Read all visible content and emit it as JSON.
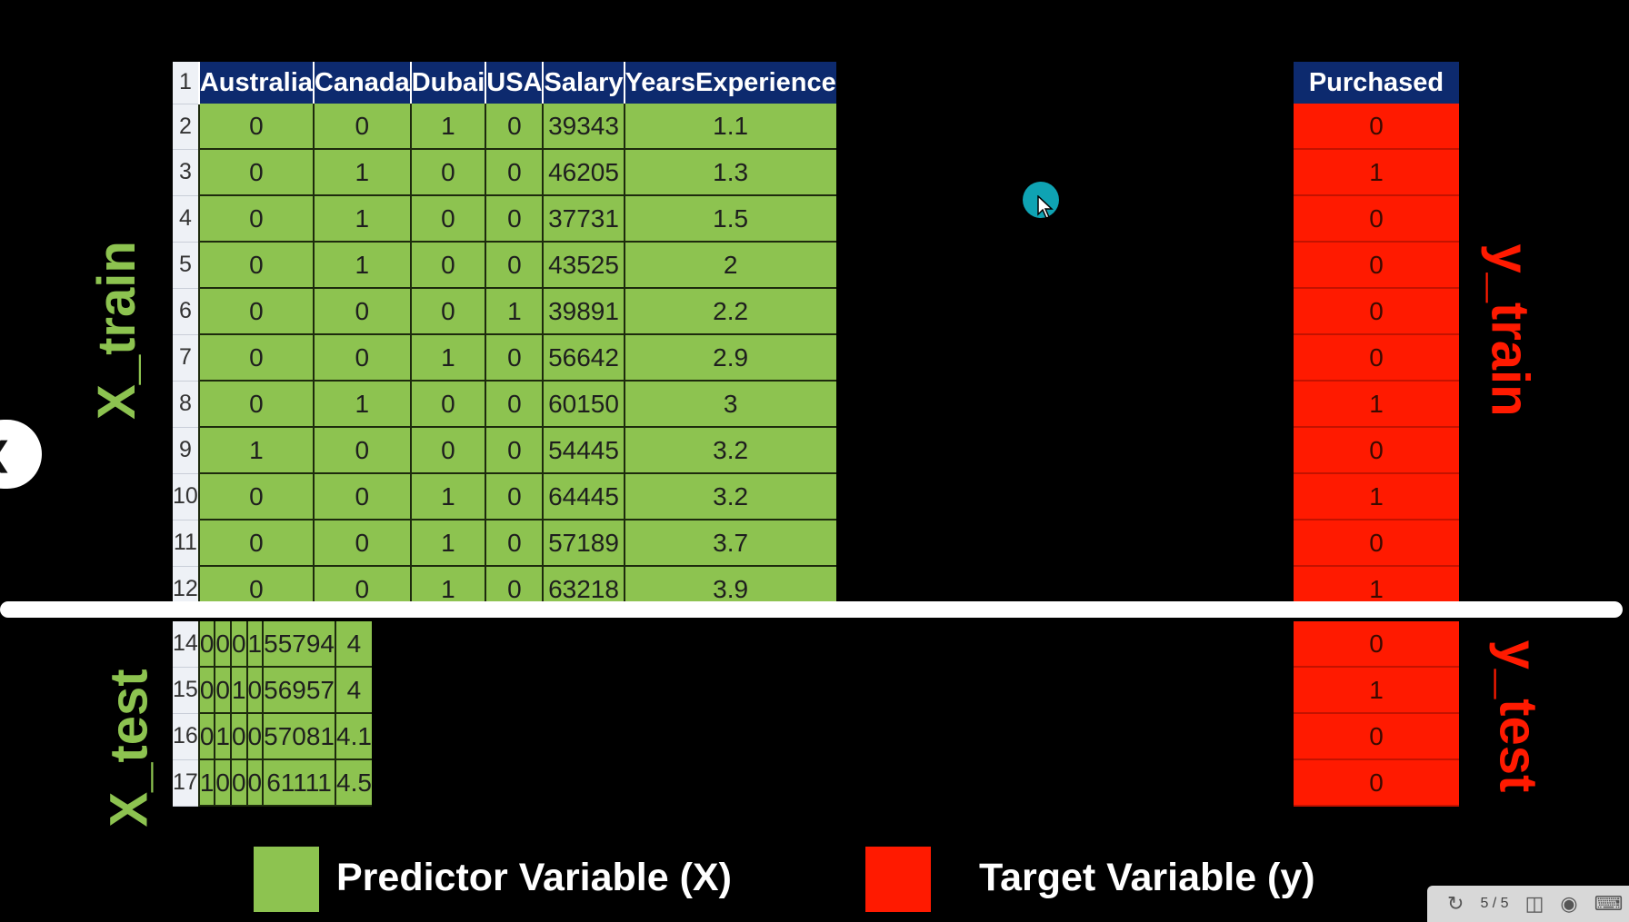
{
  "x_columns": [
    "Australia",
    "Canada",
    "Dubai",
    "USA",
    "Salary",
    "YearsExperience"
  ],
  "y_column": "Purchased",
  "train_rows": [
    {
      "row": "2",
      "cells": [
        "0",
        "0",
        "1",
        "0",
        "39343",
        "1.1"
      ],
      "y": "0"
    },
    {
      "row": "3",
      "cells": [
        "0",
        "1",
        "0",
        "0",
        "46205",
        "1.3"
      ],
      "y": "1"
    },
    {
      "row": "4",
      "cells": [
        "0",
        "1",
        "0",
        "0",
        "37731",
        "1.5"
      ],
      "y": "0"
    },
    {
      "row": "5",
      "cells": [
        "0",
        "1",
        "0",
        "0",
        "43525",
        "2"
      ],
      "y": "0"
    },
    {
      "row": "6",
      "cells": [
        "0",
        "0",
        "0",
        "1",
        "39891",
        "2.2"
      ],
      "y": "0"
    },
    {
      "row": "7",
      "cells": [
        "0",
        "0",
        "1",
        "0",
        "56642",
        "2.9"
      ],
      "y": "0"
    },
    {
      "row": "8",
      "cells": [
        "0",
        "1",
        "0",
        "0",
        "60150",
        "3"
      ],
      "y": "1"
    },
    {
      "row": "9",
      "cells": [
        "1",
        "0",
        "0",
        "0",
        "54445",
        "3.2"
      ],
      "y": "0"
    },
    {
      "row": "10",
      "cells": [
        "0",
        "0",
        "1",
        "0",
        "64445",
        "3.2"
      ],
      "y": "1"
    },
    {
      "row": "11",
      "cells": [
        "0",
        "0",
        "1",
        "0",
        "57189",
        "3.7"
      ],
      "y": "0"
    },
    {
      "row": "12",
      "cells": [
        "0",
        "0",
        "1",
        "0",
        "63218",
        "3.9"
      ],
      "y": "1"
    }
  ],
  "test_rows": [
    {
      "row": "14",
      "cells": [
        "0",
        "0",
        "0",
        "1",
        "55794",
        "4"
      ],
      "y": "0"
    },
    {
      "row": "15",
      "cells": [
        "0",
        "0",
        "1",
        "0",
        "56957",
        "4"
      ],
      "y": "1"
    },
    {
      "row": "16",
      "cells": [
        "0",
        "1",
        "0",
        "0",
        "57081",
        "4.1"
      ],
      "y": "0"
    },
    {
      "row": "17",
      "cells": [
        "1",
        "0",
        "0",
        "0",
        "61111",
        "4.5"
      ],
      "y": "0"
    }
  ],
  "labels": {
    "header_row_num": "1",
    "x_train": "X_train",
    "y_train": "y_train",
    "x_test": "X_test",
    "y_test": "y_test"
  },
  "legend": {
    "predictor": "Predictor Variable (X)",
    "target": "Target Variable (y)",
    "predictor_color": "#8dc350",
    "target_color": "#ff1a00"
  },
  "toolbar": {
    "page_indicator": "5 / 5",
    "icons": [
      "rotate-icon",
      "window-icon",
      "broadcast-icon",
      "keyboard-icon"
    ]
  },
  "nav": {
    "back_icon": "chevron-left-icon"
  }
}
